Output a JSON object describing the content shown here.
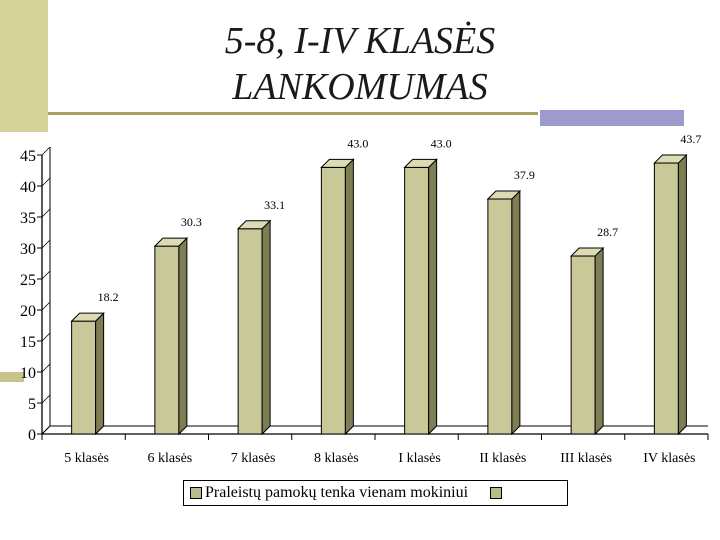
{
  "slide": {
    "title_line1": "5-8, I-IV KLASĖS",
    "title_line2": "LANKOMUMAS"
  },
  "chart_data": {
    "type": "bar",
    "style": "3d",
    "categories": [
      "5 klasės",
      "6 klasės",
      "7 klasės",
      "8 klasės",
      "I klasės",
      "II klasės",
      "III klasės",
      "IV klasės"
    ],
    "series": [
      {
        "name": "Praleistų pamokų tenka vienam mokiniui",
        "values": [
          18.2,
          30.3,
          33.1,
          43.0,
          43.0,
          37.9,
          28.7,
          43.7
        ]
      }
    ],
    "data_labels": [
      "18.2",
      "30.3",
      "33.1",
      "43.0",
      "43.0",
      "37.9",
      "28.7",
      "43.7"
    ],
    "ylim": [
      0,
      45
    ],
    "yticks": [
      0,
      5,
      10,
      15,
      20,
      25,
      30,
      35,
      40,
      45
    ],
    "xlabel": "",
    "ylabel": "",
    "legend_position": "bottom",
    "gridlines": false,
    "colors": {
      "bar_front": "#c8c898",
      "bar_side": "#7e7e55",
      "bar_top": "#dcdcb4",
      "axis": "#000000"
    }
  }
}
